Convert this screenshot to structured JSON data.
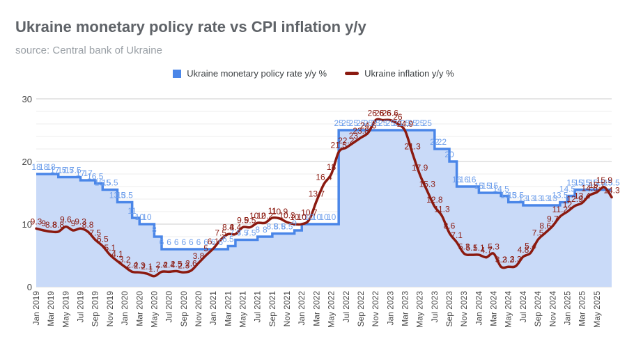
{
  "chart_data": {
    "type": "line",
    "title": "Ukraine monetary policy rate vs CPI inflation y/y",
    "subtitle": "source: Central bank of Ukraine",
    "ylim": [
      0,
      30
    ],
    "y_ticks": [
      0,
      10,
      20,
      30
    ],
    "grid": true,
    "legend_position": "top",
    "x": [
      "Jan 2019",
      "Feb 2019",
      "Mar 2019",
      "Apr 2019",
      "May 2019",
      "Jun 2019",
      "Jul 2019",
      "Aug 2019",
      "Sep 2019",
      "Oct 2019",
      "Nov 2019",
      "Dec 2019",
      "Jan 2020",
      "Feb 2020",
      "Mar 2020",
      "Apr 2020",
      "May 2020",
      "Jun 2020",
      "Jul 2020",
      "Aug 2020",
      "Sep 2020",
      "Oct 2020",
      "Nov 2020",
      "Dec 2020",
      "Jan 2021",
      "Feb 2021",
      "Mar 2021",
      "Apr 2021",
      "May 2021",
      "Jun 2021",
      "Jul 2021",
      "Aug 2021",
      "Sep 2021",
      "Oct 2021",
      "Nov 2021",
      "Dec 2021",
      "Jan 2022",
      "Feb 2022",
      "Mar 2022",
      "Apr 2022",
      "May 2022",
      "Jun 2022",
      "Jul 2022",
      "Aug 2022",
      "Sep 2022",
      "Oct 2022",
      "Nov 2022",
      "Dec 2022",
      "Jan 2023",
      "Feb 2023",
      "Mar 2023",
      "Apr 2023",
      "May 2023",
      "Jun 2023",
      "Jul 2023",
      "Aug 2023",
      "Sep 2023",
      "Oct 2023",
      "Nov 2023",
      "Dec 2023",
      "Jan 2024",
      "Feb 2024",
      "Mar 2024",
      "Apr 2024",
      "May 2024",
      "Jun 2024",
      "Jul 2024",
      "Aug 2024",
      "Sep 2024",
      "Oct 2024",
      "Nov 2024",
      "Dec 2024",
      "Jan 2025",
      "Feb 2025",
      "Mar 2025",
      "Apr 2025",
      "May 2025",
      "Jun 2025",
      "Jul 2025"
    ],
    "x_tick_labels": [
      "Jan 2019",
      "Mar 2019",
      "May 2019",
      "Jul 2019",
      "Sep 2019",
      "Nov 2019",
      "Jan 2020",
      "Mar 2020",
      "May 2020",
      "Jul 2020",
      "Sep 2020",
      "Nov 2020",
      "Jan 2021",
      "Mar 2021",
      "May 2021",
      "Jul 2021",
      "Sep 2021",
      "Nov 2021",
      "Jan 2022",
      "Mar 2022",
      "May 2022",
      "Jul 2022",
      "Sep 2022",
      "Nov 2022",
      "Jan 2023",
      "Mar 2023",
      "May 2023",
      "Jul 2023",
      "Sep 2023",
      "Nov 2023",
      "Jan 2024",
      "Mar 2024",
      "May 2024",
      "Jul 2024",
      "Sep 2024",
      "Nov 2024",
      "Jan 2025",
      "Mar 2025",
      "May 2025"
    ],
    "series": [
      {
        "name": "Ukraine monetary policy rate y/y %",
        "kind": "area-step",
        "color": "#4a86e8",
        "fill": "#c9daf8",
        "values": [
          18,
          18,
          18,
          17.5,
          17.5,
          17.5,
          17,
          17,
          16.5,
          15.5,
          15.5,
          13.5,
          13.5,
          11,
          10,
          10,
          8,
          6,
          6,
          6,
          6,
          6,
          6,
          6,
          6,
          6,
          6.5,
          7.5,
          7.5,
          7.5,
          8,
          8,
          8.5,
          8.5,
          8.5,
          9,
          10,
          10,
          10,
          10,
          10,
          25,
          25,
          25,
          25,
          25,
          25,
          25,
          25,
          25,
          25,
          25,
          25,
          25,
          22,
          22,
          20,
          16,
          16,
          16,
          15,
          15,
          15,
          14.5,
          13.5,
          13.5,
          13,
          13,
          13,
          13,
          13,
          13.5,
          14.5,
          15.5,
          15.5,
          15.5,
          15.5,
          15.5,
          15.5
        ]
      },
      {
        "name": "Ukraine inflation y/y %",
        "kind": "line",
        "color": "#8b1a10",
        "values": [
          9.3,
          9,
          8.8,
          8.8,
          9.6,
          9,
          9.3,
          8.8,
          7.5,
          6.5,
          5.1,
          4.1,
          3.2,
          2.4,
          2.3,
          2.1,
          1.7,
          2.4,
          2.4,
          2.5,
          2.3,
          2.6,
          3.8,
          5,
          6.1,
          7.5,
          8.4,
          8.4,
          9.5,
          9.5,
          10.2,
          10.2,
          11,
          10.9,
          10.3,
          10,
          10,
          10.7,
          13.7,
          16.4,
          18,
          21.5,
          22.2,
          23,
          23.8,
          24.6,
          26.6,
          26.6,
          26.6,
          26,
          24.9,
          21.3,
          17.9,
          15.3,
          12.8,
          11.3,
          8.6,
          7.1,
          5.3,
          5.1,
          5.1,
          4.7,
          5.3,
          3.2,
          3.2,
          3.3,
          4.8,
          5.4,
          7.5,
          8.6,
          9.7,
          11.2,
          12,
          12.9,
          13.4,
          14.6,
          15.1,
          15.9,
          14.3
        ]
      }
    ],
    "policy_labels": [
      "18",
      "18",
      "18",
      "17.5",
      "17.5",
      "17.5",
      "17",
      "17",
      "16.5",
      "15.5",
      "15.5",
      "13.5",
      "13.5",
      "11",
      "10",
      "10",
      "8",
      "6",
      "6",
      "6",
      "6",
      "6",
      "6",
      "6",
      "6",
      "6",
      "6.5",
      "7.5",
      "7.5",
      "7.5",
      "8",
      "8",
      "8.5",
      "8.5",
      "8.5",
      "9",
      "10",
      "10",
      "10",
      "10",
      "10",
      "25",
      "25",
      "25",
      "25",
      "25",
      "25",
      "25",
      "25",
      "25",
      "25",
      "25",
      "25",
      "25",
      "22",
      "22",
      "20",
      "16",
      "16",
      "16",
      "15",
      "15",
      "15",
      "14.5",
      "13.5",
      "13.5",
      "13",
      "13",
      "13",
      "13",
      "13",
      "13.5",
      "14.5",
      "15.5",
      "15.5",
      "15.5",
      "15.5",
      "15.5",
      "15.5"
    ],
    "inflation_labels": [
      "9.3",
      "9",
      "8.8",
      "8.8",
      "9.6",
      "9",
      "9.3",
      "8.8",
      "7.5",
      "6.5",
      "5.1",
      "4.1",
      "3.2",
      "2.4",
      "2.3",
      "2.1",
      "1.7",
      "2.4",
      "2.4",
      "2.5",
      "2.3",
      "2.6",
      "3.8",
      "5",
      "6.1",
      "7.5",
      "8.4",
      "8.4",
      "9.5",
      "9.5",
      "10.2",
      "10.2",
      "11",
      "10.9",
      "10.3",
      "10",
      "10",
      "10.7",
      "13.7",
      "16.4",
      "18",
      "21.5",
      "22.2",
      "23",
      "23.8",
      "24.6",
      "26.6",
      "26.6",
      "26.6",
      "26",
      "24.9",
      "21.3",
      "17.9",
      "15.3",
      "12.8",
      "11.3",
      "8.6",
      "7.1",
      "5.3",
      "5.1",
      "5.1",
      "4.7",
      "5.3",
      "3.2",
      "3.2",
      "3.3",
      "4.8",
      "5.4",
      "7.5",
      "8.6",
      "9.7",
      "11.2",
      "12",
      "12.9",
      "13.4",
      "14.6",
      "15.1",
      "15.9",
      "14.3"
    ]
  }
}
